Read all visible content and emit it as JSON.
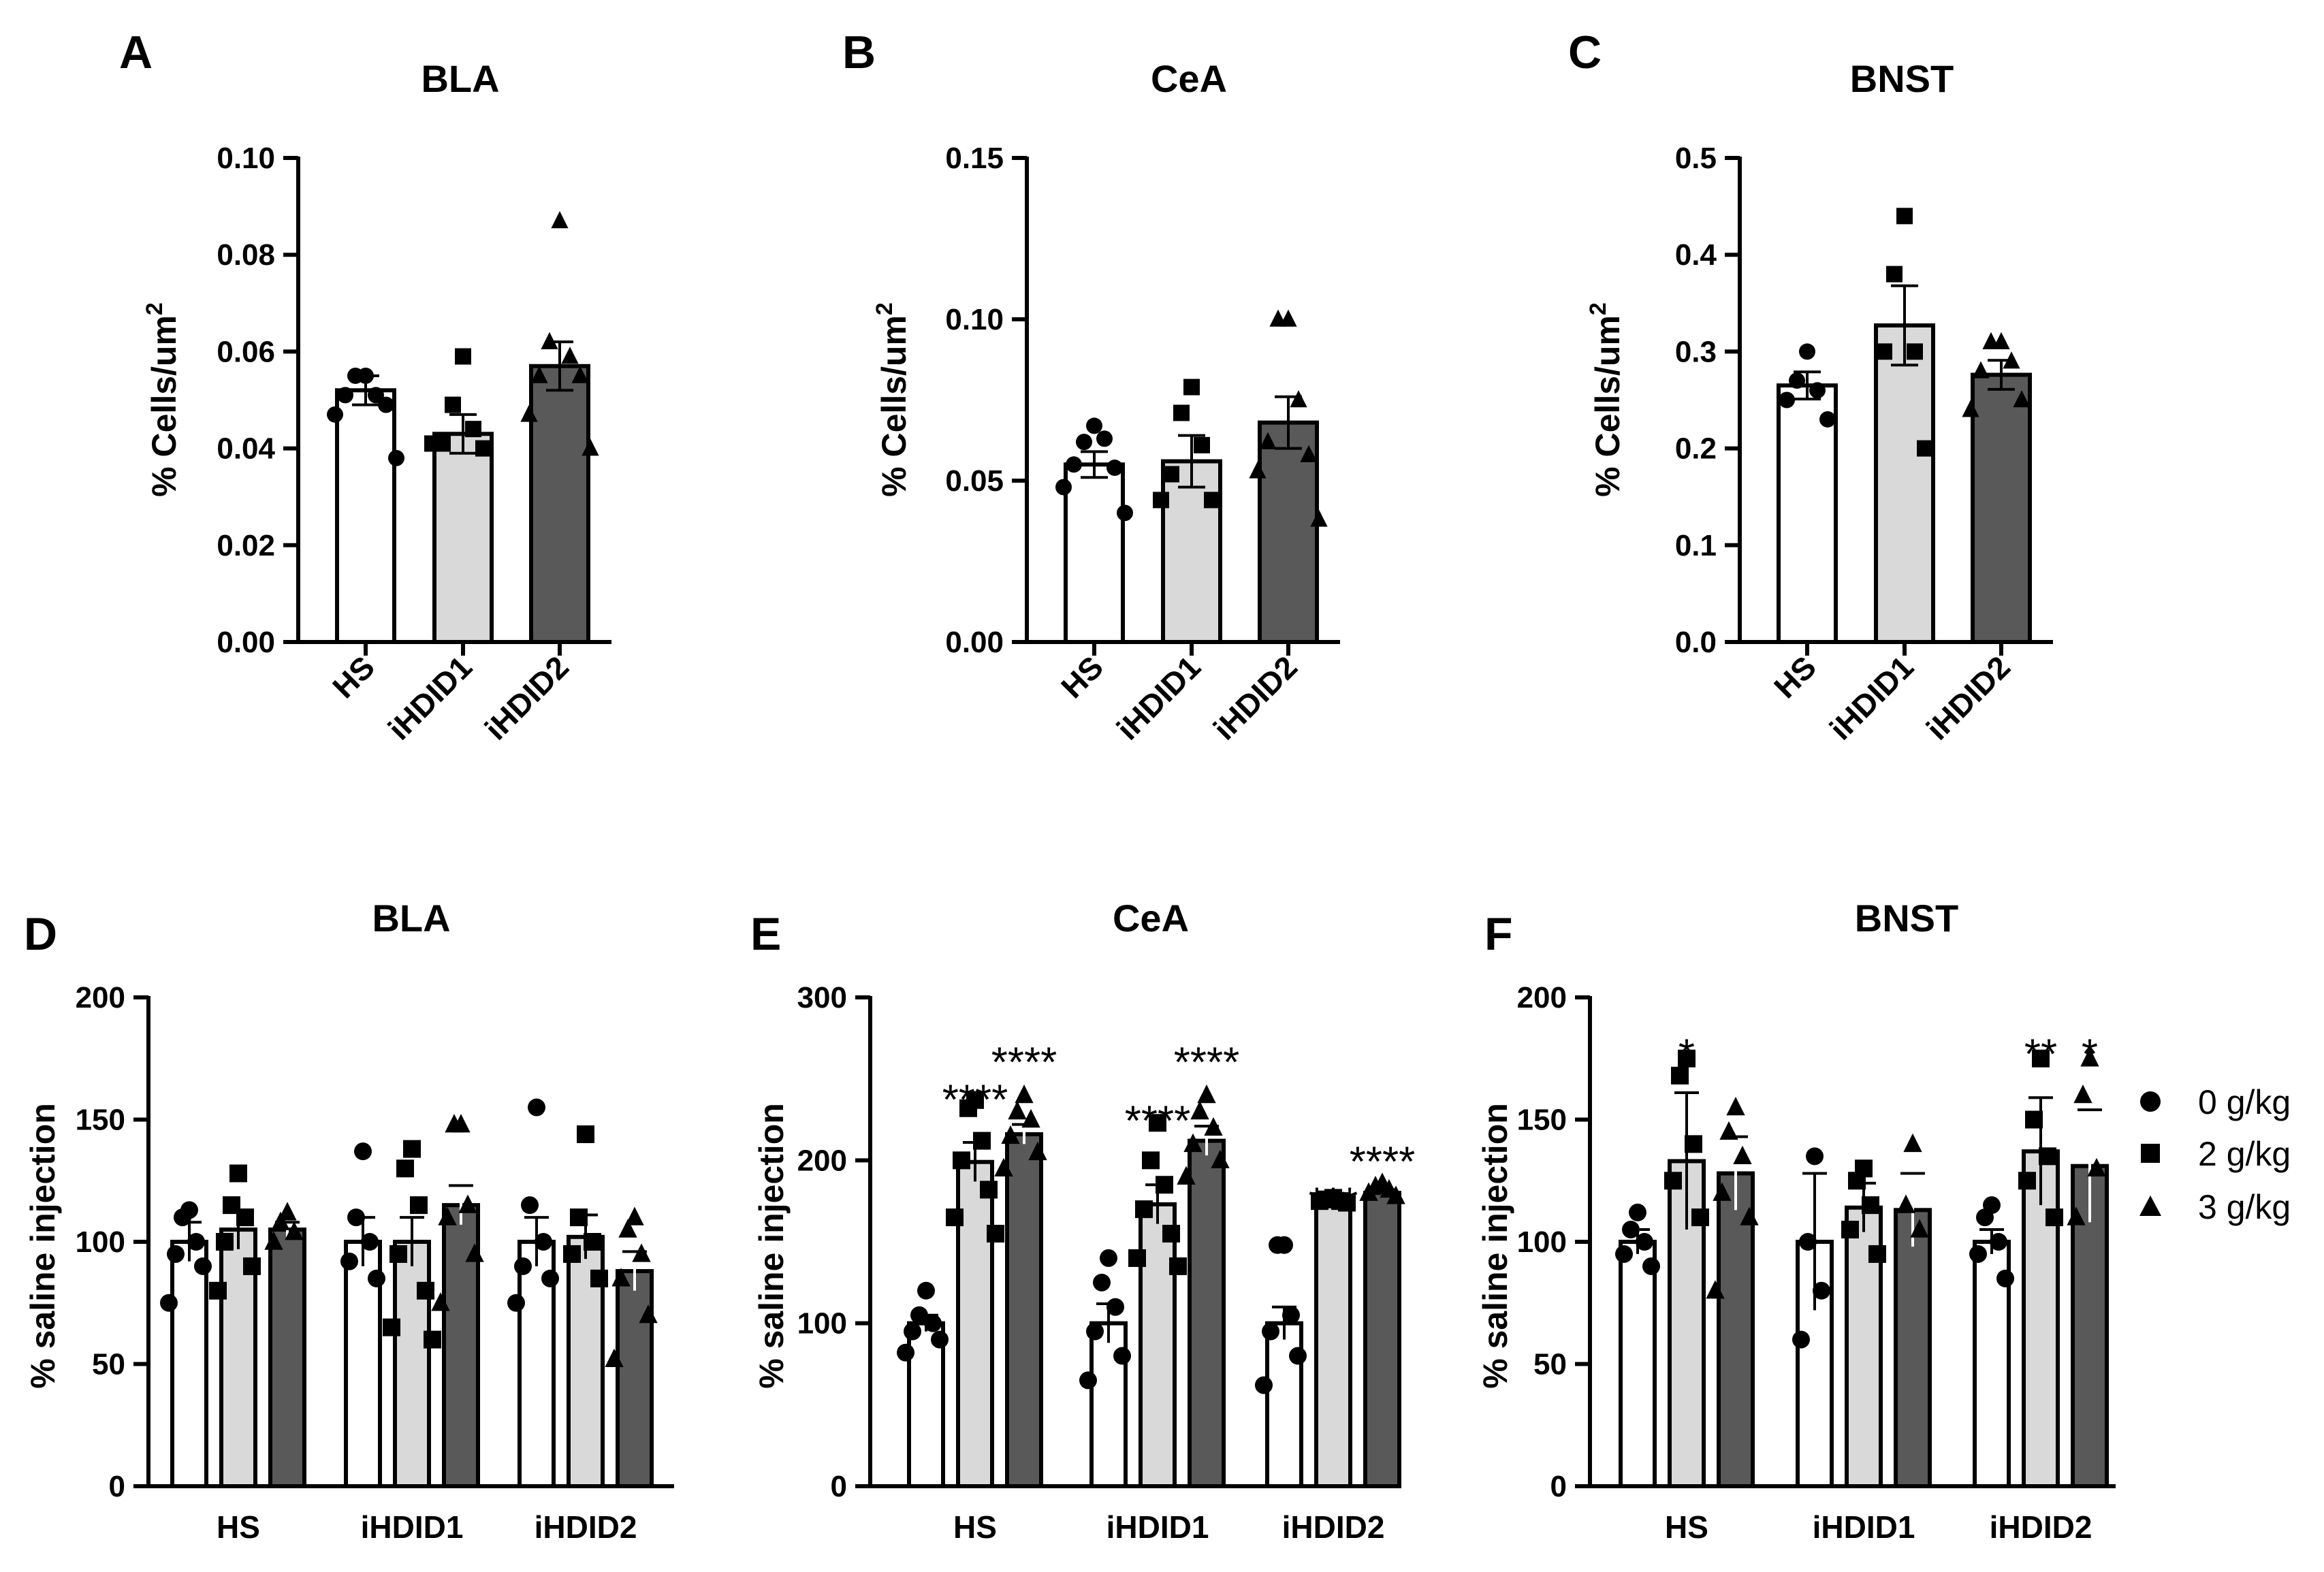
{
  "chart_data": [
    {
      "id": "A",
      "panel_label": "A",
      "type": "bar",
      "title": "BLA",
      "ylabel": "% Cells/um",
      "ylabel_sup": "2",
      "ylim": [
        0,
        0.1
      ],
      "yticks": [
        "0.00",
        "0.02",
        "0.04",
        "0.06",
        "0.08",
        "0.10"
      ],
      "categories": [
        "HS",
        "iHDID1",
        "iHDID2"
      ],
      "fills": [
        "#ffffff",
        "#d9d9d9",
        "#595959"
      ],
      "markers": [
        "circle",
        "square",
        "triangle"
      ],
      "means": [
        0.052,
        0.043,
        0.057
      ],
      "sem": [
        0.003,
        0.004,
        0.005
      ],
      "points": [
        [
          0.055,
          0.055,
          0.051,
          0.051,
          0.049,
          0.047,
          0.038
        ],
        [
          0.059,
          0.049,
          0.044,
          0.041,
          0.04,
          0.041
        ],
        [
          0.087,
          0.062,
          0.059,
          0.055,
          0.055,
          0.047,
          0.04
        ]
      ]
    },
    {
      "id": "B",
      "panel_label": "B",
      "type": "bar",
      "title": "CeA",
      "ylabel": "% Cells/um",
      "ylabel_sup": "2",
      "ylim": [
        0,
        0.15
      ],
      "yticks": [
        "0.00",
        "0.05",
        "0.10",
        "0.15"
      ],
      "categories": [
        "HS",
        "iHDID1",
        "iHDID2"
      ],
      "fills": [
        "#ffffff",
        "#d9d9d9",
        "#595959"
      ],
      "markers": [
        "circle",
        "square",
        "triangle"
      ],
      "means": [
        0.055,
        0.056,
        0.068
      ],
      "sem": [
        0.004,
        0.008,
        0.008
      ],
      "points": [
        [
          0.067,
          0.062,
          0.063,
          0.055,
          0.054,
          0.048,
          0.04
        ],
        [
          0.079,
          0.071,
          0.061,
          0.052,
          0.044,
          0.044
        ],
        [
          0.1,
          0.1,
          0.075,
          0.062,
          0.058,
          0.053,
          0.038
        ]
      ]
    },
    {
      "id": "C",
      "panel_label": "C",
      "type": "bar",
      "title": "BNST",
      "ylabel": "% Cells/um",
      "ylabel_sup": "2",
      "ylim": [
        0,
        0.5
      ],
      "yticks": [
        "0.0",
        "0.1",
        "0.2",
        "0.3",
        "0.4",
        "0.5"
      ],
      "categories": [
        "HS",
        "iHDID1",
        "iHDID2"
      ],
      "fills": [
        "#ffffff",
        "#d9d9d9",
        "#595959"
      ],
      "markers": [
        "circle",
        "square",
        "triangle"
      ],
      "means": [
        0.265,
        0.327,
        0.276
      ],
      "sem": [
        0.014,
        0.041,
        0.015
      ],
      "points": [
        [
          0.3,
          0.27,
          0.26,
          0.25,
          0.23
        ],
        [
          0.44,
          0.38,
          0.3,
          0.3,
          0.2
        ],
        [
          0.31,
          0.31,
          0.29,
          0.28,
          0.25,
          0.24
        ]
      ]
    },
    {
      "id": "D",
      "panel_label": "D",
      "type": "bar",
      "title": "BLA",
      "ylabel": "% saline injection",
      "ylim": [
        0,
        200
      ],
      "yticks": [
        "0",
        "50",
        "100",
        "150",
        "200"
      ],
      "categories": [
        "HS",
        "iHDID1",
        "iHDID2"
      ],
      "series": [
        {
          "name": "0 g/kg",
          "marker": "circle",
          "fill": "#ffffff",
          "means": [
            100,
            100,
            100
          ],
          "sem": [
            8,
            10,
            10
          ],
          "points": [
            [
              113,
              110,
              100,
              95,
              90,
              75
            ],
            [
              137,
              110,
              100,
              92,
              85
            ],
            [
              155,
              115,
              100,
              90,
              85,
              75
            ]
          ]
        },
        {
          "name": "2 g/kg",
          "marker": "square",
          "fill": "#d9d9d9",
          "means": [
            105,
            100,
            102
          ],
          "sem": [
            8,
            10,
            9
          ],
          "points": [
            [
              128,
              115,
              110,
              100,
              90,
              80
            ],
            [
              138,
              130,
              115,
              95,
              80,
              65,
              60
            ],
            [
              144,
              110,
              100,
              95,
              85
            ]
          ]
        },
        {
          "name": "3 g/kg",
          "marker": "triangle",
          "fill": "#595959",
          "means": [
            105,
            115,
            88
          ],
          "sem": [
            3,
            8,
            8
          ],
          "points": [
            [
              112,
              108,
              104,
              100
            ],
            [
              148,
              148,
              115,
              110,
              95,
              75
            ],
            [
              110,
              105,
              95,
              85,
              70,
              52
            ]
          ]
        }
      ],
      "annotations": []
    },
    {
      "id": "E",
      "panel_label": "E",
      "type": "bar",
      "title": "CeA",
      "ylabel": "% saline injection",
      "ylim": [
        0,
        300
      ],
      "yticks": [
        "0",
        "100",
        "200",
        "300"
      ],
      "categories": [
        "HS",
        "iHDID1",
        "iHDID2"
      ],
      "series": [
        {
          "name": "0 g/kg",
          "marker": "circle",
          "fill": "#ffffff",
          "means": [
            100,
            100,
            100
          ],
          "sem": [
            5,
            12,
            10
          ],
          "points": [
            [
              120,
              105,
              100,
              95,
              90,
              82
            ],
            [
              140,
              125,
              110,
              95,
              80,
              65
            ],
            [
              148,
              148,
              105,
              95,
              80,
              62
            ]
          ]
        },
        {
          "name": "2 g/kg",
          "marker": "square",
          "fill": "#d9d9d9",
          "means": [
            199,
            173,
            175
          ],
          "sem": [
            12,
            12,
            2
          ],
          "points": [
            [
              237,
              232,
              212,
              200,
              182,
              165,
              155
            ],
            [
              223,
              200,
              185,
              170,
              155,
              140,
              135
            ],
            [
              177,
              176,
              175,
              175,
              174
            ]
          ]
        },
        {
          "name": "3 g/kg",
          "marker": "triangle",
          "fill": "#595959",
          "means": [
            216,
            212,
            180
          ],
          "sem": [
            6,
            9,
            2
          ],
          "points": [
            [
              240,
              230,
              225,
              215,
              205,
              195
            ],
            [
              240,
              230,
              220,
              210,
              200,
              190
            ],
            [
              186,
              184,
              182,
              180,
              178
            ]
          ]
        }
      ],
      "annotations": [
        {
          "category": 0,
          "series": 1,
          "text": "****",
          "value": 245
        },
        {
          "category": 0,
          "series": 2,
          "text": "****",
          "value": 268
        },
        {
          "category": 1,
          "series": 1,
          "text": "****",
          "value": 232
        },
        {
          "category": 1,
          "series": 2,
          "text": "****",
          "value": 268
        },
        {
          "category": 2,
          "series": 1,
          "text": "***",
          "value": 182
        },
        {
          "category": 2,
          "series": 2,
          "text": "****",
          "value": 207
        }
      ]
    },
    {
      "id": "F",
      "panel_label": "F",
      "type": "bar",
      "title": "BNST",
      "ylabel": "% saline injection",
      "ylim": [
        0,
        200
      ],
      "yticks": [
        "0",
        "50",
        "100",
        "150",
        "200"
      ],
      "categories": [
        "HS",
        "iHDID1",
        "iHDID2"
      ],
      "series": [
        {
          "name": "0 g/kg",
          "marker": "circle",
          "fill": "#ffffff",
          "means": [
            100,
            100,
            100
          ],
          "sem": [
            5,
            28,
            5
          ],
          "points": [
            [
              112,
              105,
              100,
              95,
              90
            ],
            [
              135,
              100,
              80,
              60
            ],
            [
              115,
              110,
              100,
              95,
              85
            ]
          ]
        },
        {
          "name": "2 g/kg",
          "marker": "square",
          "fill": "#d9d9d9",
          "means": [
            133,
            114,
            137
          ],
          "sem": [
            28,
            10,
            22
          ],
          "points": [
            [
              175,
              168,
              140,
              125,
              110
            ],
            [
              130,
              125,
              115,
              105,
              95
            ],
            [
              175,
              150,
              135,
              125,
              110
            ]
          ]
        },
        {
          "name": "3 g/kg",
          "marker": "triangle",
          "fill": "#595959",
          "means": [
            128,
            113,
            131
          ],
          "sem": [
            15,
            15,
            23
          ],
          "points": [
            [
              155,
              145,
              135,
              120,
              110,
              80
            ],
            [
              140,
              115,
              105
            ],
            [
              175,
              160,
              130,
              110
            ]
          ]
        }
      ],
      "annotations": [
        {
          "category": 0,
          "series": 1,
          "text": "*",
          "value": 182
        },
        {
          "category": 2,
          "series": 1,
          "text": "**",
          "value": 182
        },
        {
          "category": 2,
          "series": 2,
          "text": "*",
          "value": 182
        }
      ]
    }
  ],
  "legend": [
    {
      "marker": "circle",
      "label": "0 g/kg"
    },
    {
      "marker": "square",
      "label": "2 g/kg"
    },
    {
      "marker": "triangle",
      "label": "3 g/kg"
    }
  ]
}
